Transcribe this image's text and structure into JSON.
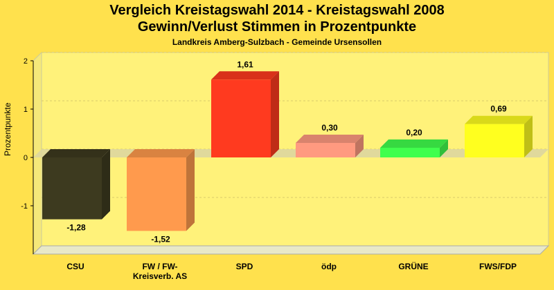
{
  "chart_data": {
    "type": "bar",
    "title": "Vergleich Kreistagswahl 2014 - Kreistagswahl 2008",
    "subtitle_line2": "Gewinn/Verlust Stimmen in Prozentpunkte",
    "subtitle": "Landkreis Amberg-Sulzbach - Gemeinde Ursensollen",
    "ylabel": "Prozentpunkte",
    "xlabel": "",
    "ylim": [
      -2,
      2
    ],
    "yticks": [
      2,
      1,
      0,
      -1
    ],
    "categories": [
      "CSU",
      "FW / FW-Kreisverb. AS",
      "SPD",
      "ödp",
      "GRÜNE",
      "FWS/FDP"
    ],
    "category_lines": [
      [
        "CSU"
      ],
      [
        "FW / FW-",
        "Kreisverb. AS"
      ],
      [
        "SPD"
      ],
      [
        "ödp"
      ],
      [
        "GRÜNE"
      ],
      [
        "FWS/FDP"
      ]
    ],
    "values": [
      -1.28,
      -1.52,
      1.61,
      0.3,
      0.2,
      0.69
    ],
    "value_labels": [
      "-1,28",
      "-1,52",
      "1,61",
      "0,30",
      "0,20",
      "0,69"
    ],
    "colors": [
      "#3d3a1f",
      "#ff9a4d",
      "#ff3a1f",
      "#ff9a80",
      "#40ff4d",
      "#ffff1f"
    ],
    "grid": true,
    "legend": "none"
  }
}
